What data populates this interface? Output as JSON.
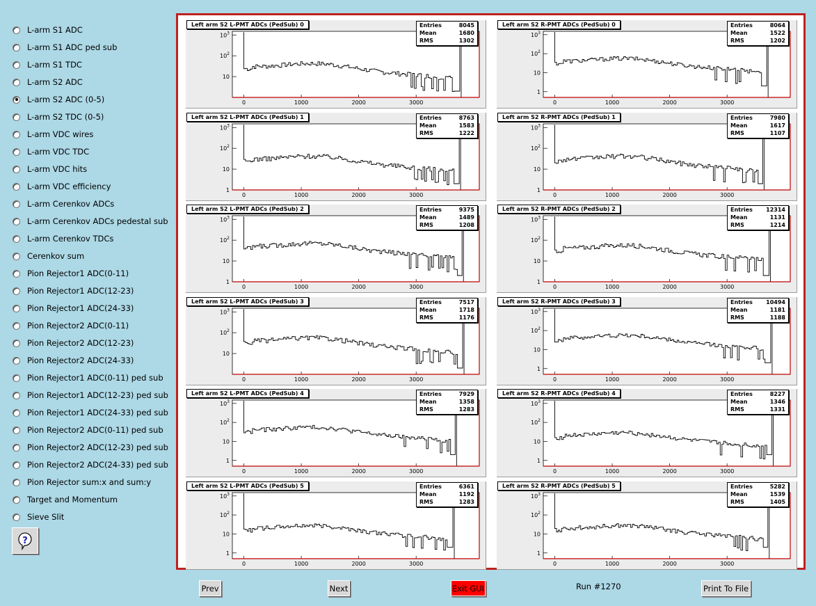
{
  "menu": {
    "selected_index": 4,
    "items": [
      "L-arm S1 ADC",
      "L-arm S1 ADC ped sub",
      "L-arm S1 TDC",
      "L-arm S2 ADC",
      "L-arm S2 ADC (0-5)",
      "L-arm S2 TDC (0-5)",
      "L-arm VDC wires",
      "L-arm VDC TDC",
      "L-arm VDC hits",
      "L-arm VDC efficiency",
      "L-arm Cerenkov ADCs",
      "L-arm Cerenkov ADCs pedestal sub",
      "L-arm Cerenkov TDCs",
      "Cerenkov sum",
      "Pion Rejector1 ADC(0-11)",
      "Pion Rejector1 ADC(12-23)",
      "Pion Rejector1 ADC(24-33)",
      "Pion Rejector2 ADC(0-11)",
      "Pion Rejector2 ADC(12-23)",
      "Pion Rejector2 ADC(24-33)",
      "Pion Rejector1 ADC(0-11) ped sub",
      "Pion Rejector1 ADC(12-23) ped sub",
      "Pion Rejector1 ADC(24-33) ped sub",
      "Pion Rejector2 ADC(0-11) ped sub",
      "Pion Rejector2 ADC(12-23) ped sub",
      "Pion Rejector2 ADC(24-33) ped sub",
      "Pion Rejector sum:x and sum:y",
      "Target and Momentum",
      "Sieve Slit"
    ],
    "help_icon": "question-mark-icon"
  },
  "buttons": {
    "prev": "Prev",
    "next": "Next",
    "exit": "Exit GUI",
    "print": "Print To File"
  },
  "run_label": "Run #1270",
  "colors": {
    "background": "#add8e6",
    "canvas_border": "#c0211e",
    "exit_button": "#ff0000",
    "axis_marker": "#c00000"
  },
  "stat_labels": [
    "Entries",
    "Mean",
    "RMS"
  ],
  "chart_data": [
    {
      "type": "histogram",
      "title": "Left arm S2 L-PMT ADCs (PedSub) 0",
      "entries": "8045",
      "mean": "1680",
      "rms": "1302",
      "x_ticks": [
        "0",
        "1000",
        "2000",
        "3000"
      ],
      "y_ticks": [
        "10^3",
        "10^2",
        "10"
      ],
      "log_y": true,
      "xlim": [
        -200,
        4100
      ],
      "ylim": [
        1,
        1500
      ],
      "spike_x": 3760,
      "plateau": 30
    },
    {
      "type": "histogram",
      "title": "Left arm S2 R-PMT ADCs (PedSub) 0",
      "entries": "8064",
      "mean": "1522",
      "rms": "1202",
      "x_ticks": [
        "0",
        "1000",
        "2000",
        "3000"
      ],
      "y_ticks": [
        "10^3",
        "10^2",
        "10",
        "1"
      ],
      "log_y": true,
      "xlim": [
        -200,
        4100
      ],
      "ylim": [
        0.5,
        1500
      ],
      "spike_x": 3690,
      "plateau": 40
    },
    {
      "type": "histogram",
      "title": "Left arm S2 L-PMT ADCs (PedSub) 1",
      "entries": "8763",
      "mean": "1583",
      "rms": "1222",
      "x_ticks": [
        "0",
        "1000",
        "2000",
        "3000"
      ],
      "y_ticks": [
        "10^3",
        "10^2",
        "10",
        "1"
      ],
      "log_y": true,
      "xlim": [
        -200,
        4100
      ],
      "ylim": [
        1,
        1500
      ],
      "spike_x": 3750,
      "plateau": 30
    },
    {
      "type": "histogram",
      "title": "Left arm S2 R-PMT ADCs (PedSub) 1",
      "entries": "7980",
      "mean": "1617",
      "rms": "1107",
      "x_ticks": [
        "0",
        "1000",
        "2000",
        "3000"
      ],
      "y_ticks": [
        "10^3",
        "10^2",
        "10",
        "1"
      ],
      "log_y": true,
      "xlim": [
        -200,
        4100
      ],
      "ylim": [
        1,
        1500
      ],
      "spike_x": 3620,
      "plateau": 30
    },
    {
      "type": "histogram",
      "title": "Left arm S2 L-PMT ADCs (PedSub) 2",
      "entries": "9375",
      "mean": "1489",
      "rms": "1208",
      "x_ticks": [
        "0",
        "1000",
        "2000",
        "3000"
      ],
      "y_ticks": [
        "10^3",
        "10^2",
        "10",
        "1"
      ],
      "log_y": true,
      "xlim": [
        -200,
        4100
      ],
      "ylim": [
        1,
        1500
      ],
      "spike_x": 3800,
      "plateau": 50
    },
    {
      "type": "histogram",
      "title": "Left arm S2 R-PMT ADCs (PedSub) 2",
      "entries": "12314",
      "mean": "1131",
      "rms": "1214",
      "x_ticks": [
        "0",
        "1000",
        "2000",
        "3000"
      ],
      "y_ticks": [
        "10^3",
        "10^2",
        "10",
        "1"
      ],
      "log_y": true,
      "xlim": [
        -200,
        4100
      ],
      "ylim": [
        1,
        1500
      ],
      "spike_x": 3730,
      "plateau": 40
    },
    {
      "type": "histogram",
      "title": "Left arm S2 L-PMT ADCs (PedSub) 3",
      "entries": "7517",
      "mean": "1718",
      "rms": "1176",
      "x_ticks": [
        "0",
        "1000",
        "2000",
        "3000"
      ],
      "y_ticks": [
        "10^3",
        "10^2",
        "10"
      ],
      "log_y": true,
      "xlim": [
        -200,
        4100
      ],
      "ylim": [
        1,
        1500
      ],
      "spike_x": 3810,
      "plateau": 40
    },
    {
      "type": "histogram",
      "title": "Left arm S2 R-PMT ADCs (PedSub) 3",
      "entries": "10494",
      "mean": "1181",
      "rms": "1188",
      "x_ticks": [
        "0",
        "1000",
        "2000",
        "3000"
      ],
      "y_ticks": [
        "10^3",
        "10^2",
        "10",
        "1"
      ],
      "log_y": true,
      "xlim": [
        -200,
        4100
      ],
      "ylim": [
        0.5,
        1500
      ],
      "spike_x": 3760,
      "plateau": 40
    },
    {
      "type": "histogram",
      "title": "Left arm S2 L-PMT ADCs (PedSub) 4",
      "entries": "7929",
      "mean": "1358",
      "rms": "1283",
      "x_ticks": [
        "0",
        "1000",
        "2000",
        "3000"
      ],
      "y_ticks": [
        "10^3",
        "10^2",
        "10",
        "1"
      ],
      "log_y": true,
      "xlim": [
        -200,
        4100
      ],
      "ylim": [
        0.5,
        1500
      ],
      "spike_x": 3680,
      "plateau": 40
    },
    {
      "type": "histogram",
      "title": "Left arm S2 R-PMT ADCs (PedSub) 4",
      "entries": "8227",
      "mean": "1346",
      "rms": "1331",
      "x_ticks": [
        "0",
        "1000",
        "2000",
        "3000"
      ],
      "y_ticks": [
        "10^3",
        "10^2",
        "10",
        "1"
      ],
      "log_y": true,
      "xlim": [
        -200,
        4100
      ],
      "ylim": [
        0.5,
        1500
      ],
      "spike_x": 3780,
      "plateau": 20
    },
    {
      "type": "histogram",
      "title": "Left arm S2 L-PMT ADCs (PedSub) 5",
      "entries": "6361",
      "mean": "1192",
      "rms": "1283",
      "x_ticks": [
        "0",
        "1000",
        "2000",
        "3000"
      ],
      "y_ticks": [
        "10^3",
        "10^2",
        "10",
        "1"
      ],
      "log_y": true,
      "xlim": [
        -200,
        4100
      ],
      "ylim": [
        0.5,
        1500
      ],
      "spike_x": 3640,
      "plateau": 20
    },
    {
      "type": "histogram",
      "title": "Left arm S2 R-PMT ADCs (PedSub) 5",
      "entries": "5282",
      "mean": "1539",
      "rms": "1405",
      "x_ticks": [
        "0",
        "1000",
        "2000",
        "3000"
      ],
      "y_ticks": [
        "10^3",
        "10^2",
        "10",
        "1"
      ],
      "log_y": true,
      "xlim": [
        -200,
        4100
      ],
      "ylim": [
        0.5,
        1500
      ],
      "spike_x": 3710,
      "plateau": 20
    }
  ]
}
